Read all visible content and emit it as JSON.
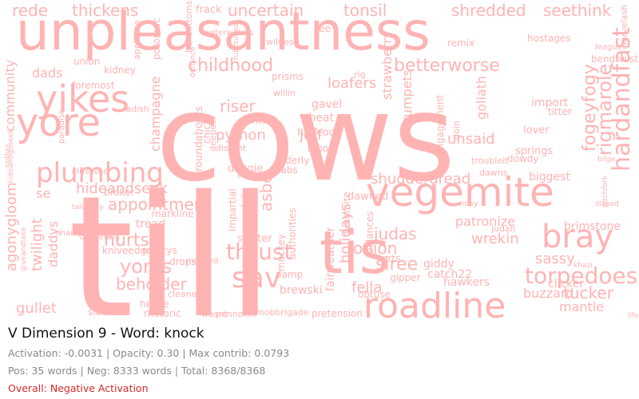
{
  "title": "V Dimension 9 - Word: knock",
  "stats": {
    "line1": "Activation: -0.0031 | Opacity: 0.30 | Max contrib: 0.0793",
    "line2": "Pos: 35 words | Neg: 8333 words | Total: 8368/8368",
    "overall": "Overall: Negative Activation"
  },
  "colors": {
    "cloud_word": "#ffb3b3",
    "overall_text": "#d62728",
    "title_text": "#111111",
    "stat_text": "#8a8a8a"
  },
  "cloud_words": [
    "cows",
    "till",
    "unpleasantness",
    "tis",
    "vegemite",
    "roadline",
    "yore",
    "yikes",
    "plumbing",
    "bray",
    "sav",
    "thrust",
    "torpedoes",
    "hardandfast",
    "rigmarole",
    "fogeyfogy",
    "childhood",
    "betterworse",
    "shredded",
    "seethink",
    "rede",
    "thickens",
    "uncertain",
    "tonsil",
    "community",
    "agonygloom",
    "twilight",
    "daddys",
    "gullet",
    "yorks",
    "hurts",
    "beholder",
    "appointment",
    "hideandseek",
    "champagne",
    "python",
    "jeff",
    "riser",
    "asbe",
    "rapid",
    "holidays",
    "judas",
    "onion",
    "siree",
    "fella",
    "shudderdread",
    "unsaid",
    "loafers",
    "strawberry",
    "goliath",
    "trumpets",
    "sassy",
    "wrekin",
    "brimstone",
    "tucker",
    "mantle",
    "buzzard",
    "patronize",
    "giddy",
    "dads",
    "se",
    "kidney",
    "frack",
    "union",
    "foremost",
    "roundabouts",
    "doggie",
    "central",
    "wheat",
    "halfcock",
    "moola",
    "prisms",
    "gavel",
    "import",
    "lover",
    "springs",
    "biggest",
    "dawned",
    "brewski",
    "hawkers",
    "catch22",
    "clicker",
    "hence",
    "rhetoric",
    "cleaned",
    "invent",
    "stutter",
    "damp",
    "pretension",
    "mobbrigade",
    "pennorth",
    "sidenote",
    "dropsy",
    "mercys",
    "kniveedge",
    "broker",
    "tread",
    "markline",
    "impartial",
    "muckey",
    "authorities",
    "balances",
    "gipper",
    "fairweather",
    "dynamite",
    "arts",
    "obtuse",
    "orderly",
    "crabs",
    "titter",
    "doin",
    "engagement",
    "troubleit",
    "dowdy",
    "bendtwist",
    "hostages",
    "nervelash",
    "applause",
    "potomac",
    "fee",
    "wildest",
    "bellbottoms",
    "remix",
    "rig",
    "radish",
    "willin",
    "chick",
    "deepest",
    "mingled",
    "nosy",
    "delivering",
    "champions",
    "distant",
    "dawns",
    "judah",
    "wasnt",
    "lifes",
    "waterwaters",
    "defiance",
    "tubetubes",
    "paradise",
    "nother",
    "giveandtake",
    "hideandgoseek",
    "talestory",
    "closeted",
    "khazi",
    "leagues",
    "stoked",
    "bilge",
    "pitchfork",
    "fourmile"
  ]
}
